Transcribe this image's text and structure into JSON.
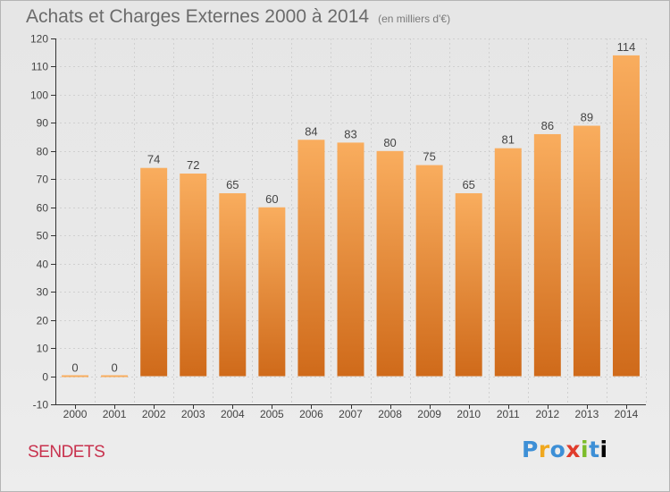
{
  "title": "Achats et Charges Externes 2000 à 2014",
  "subtitle": "(en milliers d'€)",
  "commune": "SENDETS",
  "brand": "Proxiti",
  "colors": {
    "bar_top": "#f9ad5e",
    "bar_bottom": "#cf6a1a",
    "axis": "#333333",
    "grid": "#d0d0d0",
    "commune": "#c8324e"
  },
  "chart_data": {
    "type": "bar",
    "title": "Achats et Charges Externes 2000 à 2014",
    "subtitle": "(en milliers d'€)",
    "categories": [
      "2000",
      "2001",
      "2002",
      "2003",
      "2004",
      "2005",
      "2006",
      "2007",
      "2008",
      "2009",
      "2010",
      "2011",
      "2012",
      "2013",
      "2014"
    ],
    "values": [
      0,
      0,
      74,
      72,
      65,
      60,
      84,
      83,
      80,
      75,
      65,
      81,
      86,
      89,
      114
    ],
    "data_labels": [
      "0",
      "0",
      "74",
      "72",
      "65",
      "60",
      "84",
      "83",
      "80",
      "75",
      "65",
      "81",
      "86",
      "89",
      "114"
    ],
    "yticks": [
      -10,
      0,
      10,
      20,
      30,
      40,
      50,
      60,
      70,
      80,
      90,
      100,
      110,
      120
    ],
    "ylim": [
      -10,
      120
    ],
    "grid": true,
    "legend": false
  }
}
